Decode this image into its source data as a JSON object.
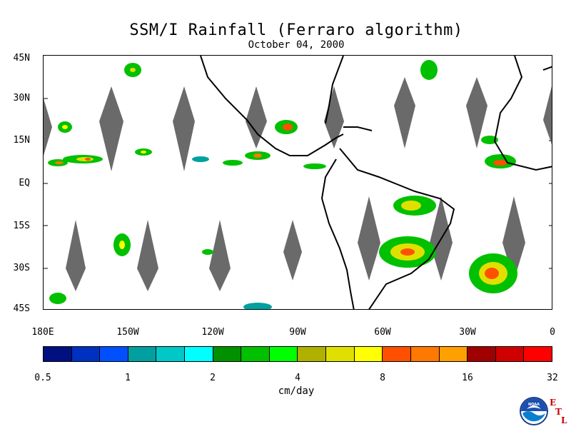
{
  "title": "SSM/I Rainfall (Ferraro algorithm)",
  "subtitle": "October 04, 2000",
  "lat_labels": [
    "45N",
    "30N",
    "15N",
    "EQ",
    "15S",
    "30S",
    "45S"
  ],
  "lon_labels": [
    "180E",
    "150W",
    "120W",
    "90W",
    "60W",
    "30W",
    "0"
  ],
  "colorbar": {
    "units": "cm/day",
    "ticks": [
      "0.5",
      "1",
      "2",
      "4",
      "8",
      "16",
      "32"
    ],
    "colors": [
      "#001080",
      "#0030c0",
      "#0050ff",
      "#00a0a0",
      "#00c8c8",
      "#00ffff",
      "#009000",
      "#00c000",
      "#00ff00",
      "#b0b000",
      "#e0e000",
      "#ffff00",
      "#ff5000",
      "#ff7800",
      "#ffa000",
      "#a00000",
      "#d00000",
      "#ff0000"
    ]
  },
  "logo": {
    "badge_text": "NOAA",
    "letters": [
      "E",
      "T",
      "L"
    ]
  },
  "map": {
    "missing_swath_color": "#6a6a6a",
    "coast_color": "#000000"
  }
}
